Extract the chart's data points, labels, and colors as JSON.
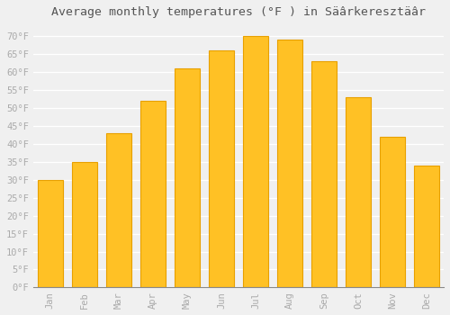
{
  "title": "Average monthly temperatures (°F ) in Säârkeresztäâr",
  "months": [
    "Jan",
    "Feb",
    "Mar",
    "Apr",
    "May",
    "Jun",
    "Jul",
    "Aug",
    "Sep",
    "Oct",
    "Nov",
    "Dec"
  ],
  "values": [
    30,
    35,
    43,
    52,
    61,
    66,
    70,
    69,
    63,
    53,
    42,
    34
  ],
  "bar_color": "#FFC125",
  "bar_edge_color": "#E8A000",
  "background_color": "#F0F0F0",
  "grid_color": "#FFFFFF",
  "ylim": [
    0,
    73
  ],
  "yticks": [
    0,
    5,
    10,
    15,
    20,
    25,
    30,
    35,
    40,
    45,
    50,
    55,
    60,
    65,
    70
  ],
  "tick_label_color": "#AAAAAA",
  "title_color": "#555555",
  "title_fontsize": 9.5,
  "tick_fontsize": 7.5
}
